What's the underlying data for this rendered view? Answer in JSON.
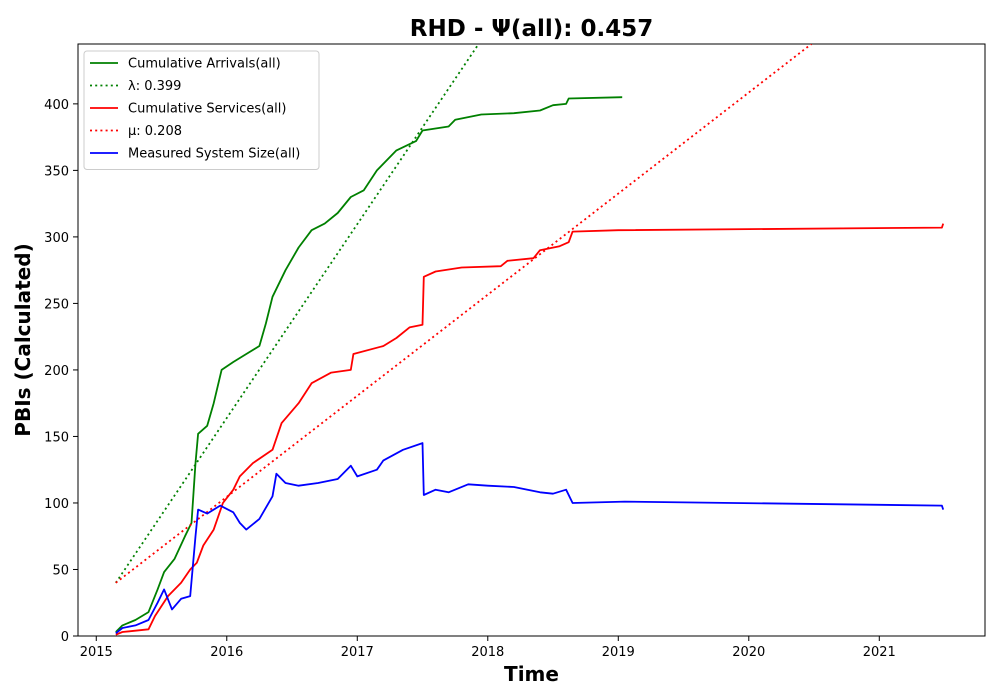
{
  "chart_data": {
    "type": "line",
    "title": "RHD -  Ψ(all): 0.457",
    "xlabel": "Time",
    "ylabel": "PBIs (Calculated)",
    "xlim": [
      2014.86,
      2021.81
    ],
    "ylim": [
      0,
      445
    ],
    "x_ticks": [
      2015,
      2016,
      2017,
      2018,
      2019,
      2020,
      2021
    ],
    "x_tick_labels": [
      "2015",
      "2016",
      "2017",
      "2018",
      "2019",
      "2020",
      "2021"
    ],
    "y_ticks": [
      0,
      50,
      100,
      150,
      200,
      250,
      300,
      350,
      400
    ],
    "y_tick_labels": [
      "0",
      "50",
      "100",
      "150",
      "200",
      "250",
      "300",
      "350",
      "400"
    ],
    "grid": false,
    "legend_position": "top-left",
    "series": [
      {
        "name": "Cumulative Arrivals(all)",
        "color": "#008000",
        "style": "solid",
        "points": [
          [
            2015.15,
            3
          ],
          [
            2015.2,
            8
          ],
          [
            2015.3,
            12
          ],
          [
            2015.4,
            18
          ],
          [
            2015.47,
            35
          ],
          [
            2015.52,
            48
          ],
          [
            2015.6,
            58
          ],
          [
            2015.68,
            75
          ],
          [
            2015.73,
            85
          ],
          [
            2015.76,
            130
          ],
          [
            2015.78,
            152
          ],
          [
            2015.85,
            158
          ],
          [
            2015.9,
            175
          ],
          [
            2015.96,
            200
          ],
          [
            2016.05,
            206
          ],
          [
            2016.15,
            212
          ],
          [
            2016.25,
            218
          ],
          [
            2016.3,
            235
          ],
          [
            2016.35,
            255
          ],
          [
            2016.45,
            275
          ],
          [
            2016.55,
            292
          ],
          [
            2016.65,
            305
          ],
          [
            2016.75,
            310
          ],
          [
            2016.85,
            318
          ],
          [
            2016.95,
            330
          ],
          [
            2017.05,
            335
          ],
          [
            2017.15,
            350
          ],
          [
            2017.3,
            365
          ],
          [
            2017.45,
            372
          ],
          [
            2017.5,
            380
          ],
          [
            2017.7,
            383
          ],
          [
            2017.75,
            388
          ],
          [
            2017.95,
            392
          ],
          [
            2018.2,
            393
          ],
          [
            2018.4,
            395
          ],
          [
            2018.5,
            399
          ],
          [
            2018.6,
            400
          ],
          [
            2018.62,
            404
          ],
          [
            2019.03,
            405
          ]
        ]
      },
      {
        "name": "λ: 0.399",
        "color": "#008000",
        "style": "dotted",
        "points": [
          [
            2015.15,
            40
          ],
          [
            2017.93,
            445
          ]
        ]
      },
      {
        "name": "Cumulative Services(all)",
        "color": "#ff0000",
        "style": "solid",
        "points": [
          [
            2015.15,
            1
          ],
          [
            2015.2,
            3
          ],
          [
            2015.3,
            4
          ],
          [
            2015.4,
            5
          ],
          [
            2015.45,
            15
          ],
          [
            2015.55,
            30
          ],
          [
            2015.65,
            40
          ],
          [
            2015.72,
            50
          ],
          [
            2015.77,
            55
          ],
          [
            2015.82,
            68
          ],
          [
            2015.9,
            80
          ],
          [
            2015.97,
            100
          ],
          [
            2016.05,
            110
          ],
          [
            2016.1,
            120
          ],
          [
            2016.2,
            130
          ],
          [
            2016.35,
            140
          ],
          [
            2016.42,
            160
          ],
          [
            2016.55,
            175
          ],
          [
            2016.65,
            190
          ],
          [
            2016.8,
            198
          ],
          [
            2016.95,
            200
          ],
          [
            2016.97,
            212
          ],
          [
            2017.2,
            218
          ],
          [
            2017.3,
            224
          ],
          [
            2017.4,
            232
          ],
          [
            2017.5,
            234
          ],
          [
            2017.51,
            270
          ],
          [
            2017.6,
            274
          ],
          [
            2017.8,
            277
          ],
          [
            2018.1,
            278
          ],
          [
            2018.15,
            282
          ],
          [
            2018.35,
            284
          ],
          [
            2018.4,
            290
          ],
          [
            2018.55,
            293
          ],
          [
            2018.62,
            296
          ],
          [
            2018.65,
            304
          ],
          [
            2019.0,
            305
          ],
          [
            2021.48,
            307
          ],
          [
            2021.49,
            310
          ]
        ]
      },
      {
        "name": "μ: 0.208",
        "color": "#ff0000",
        "style": "dotted",
        "points": [
          [
            2015.15,
            40
          ],
          [
            2020.48,
            445
          ]
        ]
      },
      {
        "name": "Measured System Size(all)",
        "color": "#0000ff",
        "style": "solid",
        "points": [
          [
            2015.15,
            2
          ],
          [
            2015.2,
            6
          ],
          [
            2015.3,
            8
          ],
          [
            2015.4,
            12
          ],
          [
            2015.47,
            25
          ],
          [
            2015.52,
            35
          ],
          [
            2015.58,
            20
          ],
          [
            2015.65,
            28
          ],
          [
            2015.72,
            30
          ],
          [
            2015.76,
            75
          ],
          [
            2015.78,
            95
          ],
          [
            2015.85,
            92
          ],
          [
            2015.95,
            98
          ],
          [
            2016.05,
            93
          ],
          [
            2016.1,
            85
          ],
          [
            2016.15,
            80
          ],
          [
            2016.25,
            88
          ],
          [
            2016.35,
            105
          ],
          [
            2016.38,
            122
          ],
          [
            2016.45,
            115
          ],
          [
            2016.55,
            113
          ],
          [
            2016.7,
            115
          ],
          [
            2016.85,
            118
          ],
          [
            2016.95,
            128
          ],
          [
            2017.0,
            120
          ],
          [
            2017.15,
            125
          ],
          [
            2017.2,
            132
          ],
          [
            2017.35,
            140
          ],
          [
            2017.5,
            145
          ],
          [
            2017.51,
            106
          ],
          [
            2017.6,
            110
          ],
          [
            2017.7,
            108
          ],
          [
            2017.85,
            114
          ],
          [
            2018.0,
            113
          ],
          [
            2018.2,
            112
          ],
          [
            2018.4,
            108
          ],
          [
            2018.5,
            107
          ],
          [
            2018.6,
            110
          ],
          [
            2018.65,
            100
          ],
          [
            2019.05,
            101
          ],
          [
            2021.48,
            98
          ],
          [
            2021.49,
            95
          ]
        ]
      }
    ]
  }
}
